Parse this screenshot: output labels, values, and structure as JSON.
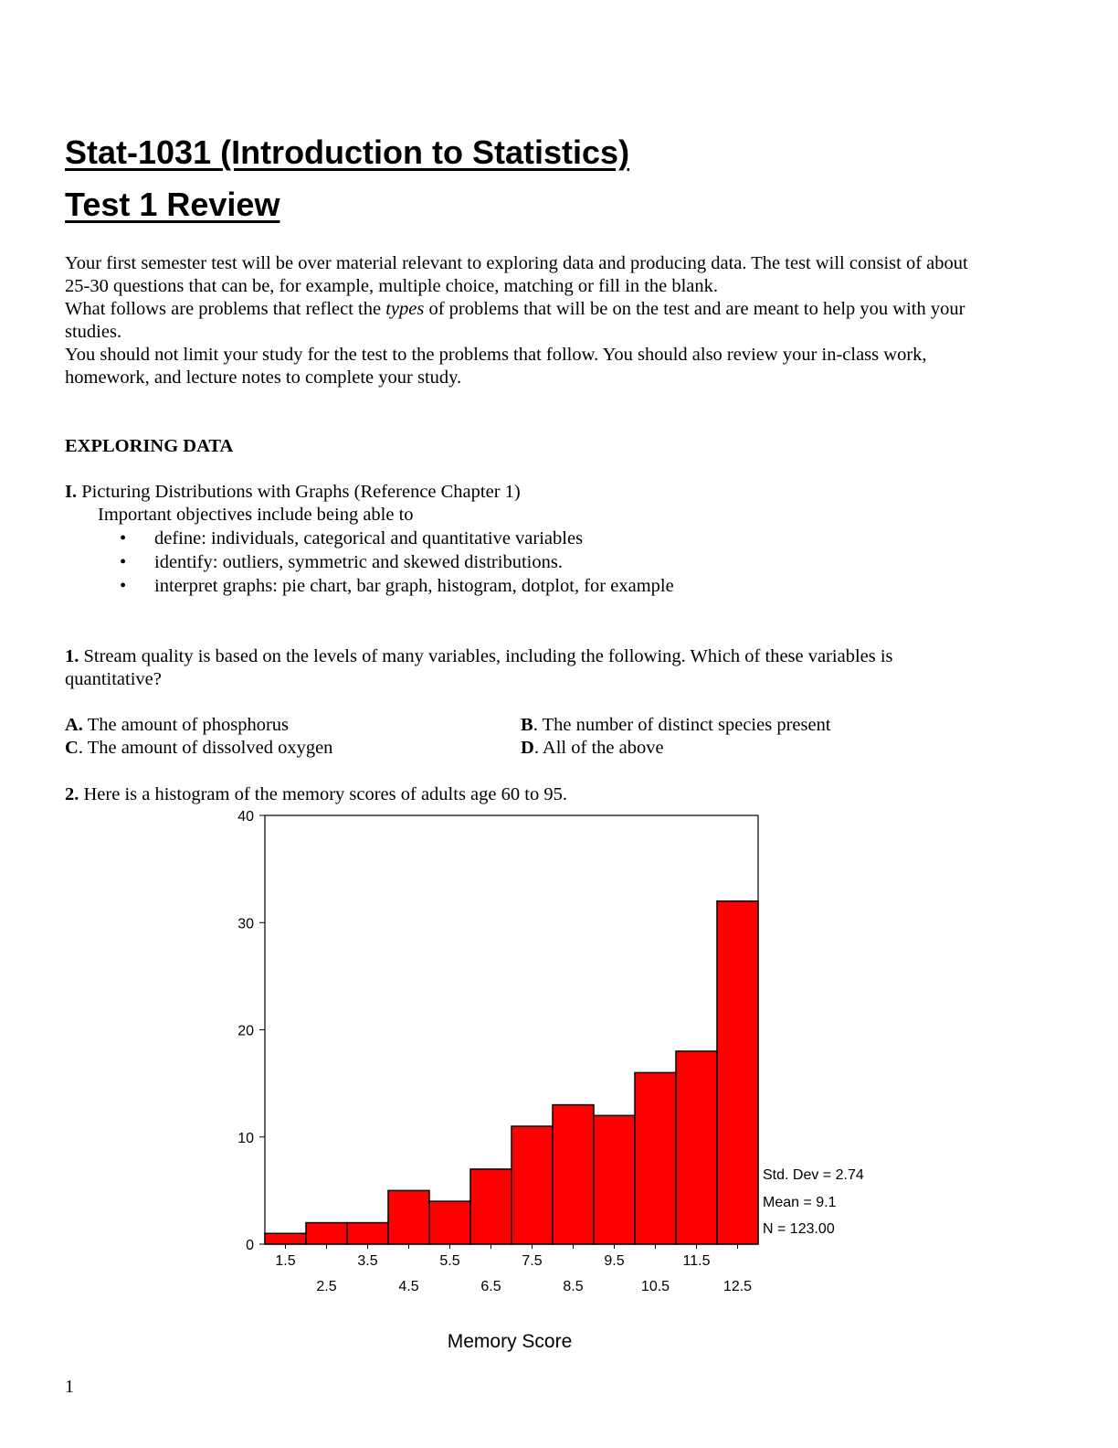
{
  "header": {
    "title_line1": "Stat-1031 (Introduction to Statistics)",
    "title_line2": "Test 1 Review"
  },
  "intro": {
    "line1": "Your first semester test will be over material relevant to exploring data and producing data. The test will consist of about",
    "line2": "25-30 questions that can be, for example, multiple choice, matching or fill in the blank.",
    "line3_pre": "What follows are problems that reflect the ",
    "line3_em": "types",
    "line3_post": " of problems that will be on the test and are meant to help you with your",
    "line4": "studies.",
    "line5": "You should not limit your study for the test to the problems that follow. You should also review your in-class work,",
    "line6": "homework, and lecture notes to complete your study."
  },
  "section": {
    "heading": "EXPLORING DATA",
    "part_label": "I.",
    "part_title": " Picturing Distributions with Graphs (Reference Chapter 1)",
    "objectives_intro": "Important objectives include being able to",
    "bullet_char": "•",
    "objectives": [
      "define: individuals,  categorical and quantitative variables",
      "identify: outliers, symmetric and skewed distributions.",
      "interpret graphs: pie chart, bar graph, histogram, dotplot, for example"
    ]
  },
  "question1": {
    "number": "1.",
    "text_line1": " Stream quality is based on the levels of many variables, including the following.  Which of these variables is",
    "text_line2": "quantitative?",
    "options": [
      {
        "letter": "A.",
        "text": " The amount of phosphorus"
      },
      {
        "letter": "B",
        "text": ". The number of distinct species present"
      },
      {
        "letter": "C",
        "text": ". The amount of dissolved oxygen"
      },
      {
        "letter": "D",
        "text": ". All of the above"
      }
    ]
  },
  "question2": {
    "number": "2.",
    "text": " Here is a histogram of the memory scores of adults age 60 to 95."
  },
  "chart_data": {
    "type": "bar",
    "categories": [
      "1.5",
      "2.5",
      "3.5",
      "4.5",
      "5.5",
      "6.5",
      "7.5",
      "8.5",
      "9.5",
      "10.5",
      "11.5",
      "12.5"
    ],
    "values": [
      1,
      2,
      2,
      5,
      4,
      7,
      11,
      13,
      12,
      16,
      18,
      32
    ],
    "xlabel": "Memory Score",
    "ylabel": "",
    "ylim": [
      0,
      40
    ],
    "yticks": [
      "0",
      "10",
      "20",
      "30",
      "40"
    ],
    "grid": false,
    "bar_color": "#ff0000",
    "stats": [
      "Std. Dev = 2.74",
      "Mean = 9.1",
      "N = 123.00"
    ]
  },
  "footer": {
    "page_number": "1"
  }
}
